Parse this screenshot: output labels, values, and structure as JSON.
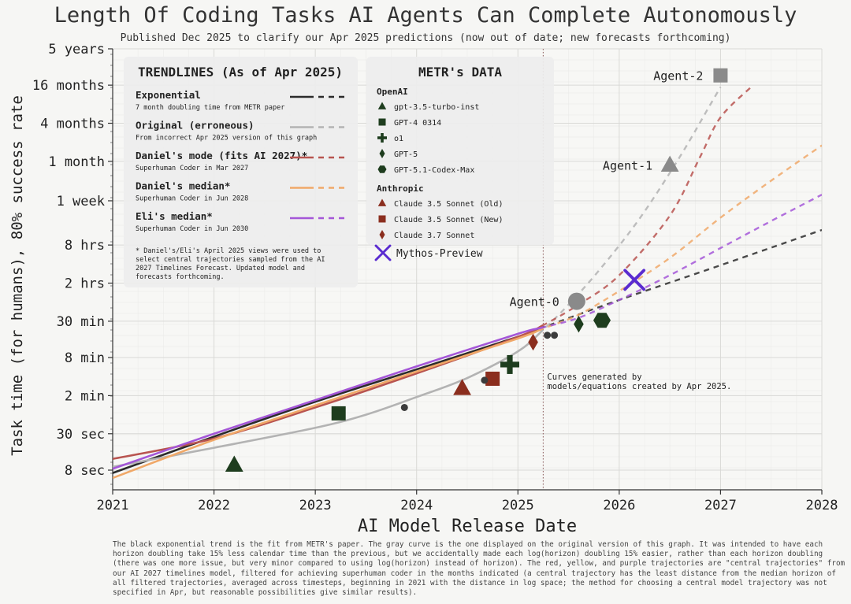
{
  "title": "Length Of Coding Tasks AI Agents Can Complete Autonomously",
  "subtitle": "Published Dec 2025 to clarify our Apr 2025 predictions (now out of date; new forecasts forthcoming)",
  "caption": "The black exponential trend is the fit from METR's paper. The gray curve is the one displayed on the original version of this graph. It was intended to have each horizon doubling take 15% less calendar time than the previous, but we accidentally made each log(horizon) doubling 15% easier, rather than each horizon doubling (there was one more issue, but very minor compared to using log(horizon) instead of horizon). The red, yellow, and purple trajectories are \"central trajectories\" from our AI 2027 timelines model, filtered for achieving superhuman coder in the months indicated (a central trajectory has the least distance from the median horizon of all filtered trajectories, averaged across timesteps, beginning in 2021 with the distance in log space; the method for choosing a central model trajectory was not specified in Apr, but reasonable possibilities give similar results).",
  "chart_data": {
    "type": "scatter",
    "xlabel": "AI Model Release Date",
    "ylabel": "Task time (for humans), 80% success rate",
    "xlim": [
      2021,
      2028
    ],
    "x_ticks": [
      "2021",
      "2022",
      "2023",
      "2024",
      "2025",
      "2026",
      "2027",
      "2028"
    ],
    "y_scale": "log",
    "y_unit": "minutes",
    "ylim_minutes": [
      4,
      2628000
    ],
    "y_ticks": [
      {
        "label": "8 sec",
        "minutes": 0.133
      },
      {
        "label": "30 sec",
        "minutes": 0.5
      },
      {
        "label": "2 min",
        "minutes": 2
      },
      {
        "label": "8 min",
        "minutes": 8
      },
      {
        "label": "30 min",
        "minutes": 30
      },
      {
        "label": "2 hrs",
        "minutes": 120
      },
      {
        "label": "8 hrs",
        "minutes": 480
      },
      {
        "label": "1 week",
        "minutes": 2400
      },
      {
        "label": "1 month",
        "minutes": 10080
      },
      {
        "label": "4 months",
        "minutes": 40320
      },
      {
        "label": "16 months",
        "minutes": 161280
      },
      {
        "label": "5 years",
        "minutes": 604800
      }
    ],
    "cutoff_line": {
      "x": 2025.25,
      "note": "Curves generated by models/equations created by Apr 2025."
    },
    "trend_panel": {
      "heading": "TRENDLINES (As of Apr 2025)",
      "footnote": "* Daniel's/Eli's April 2025 views were used to select central trajectories sampled from the AI 2027 Timelines Forecast. Updated model and forecasts forthcoming."
    },
    "trendlines": [
      {
        "name": "Exponential",
        "desc": "7 month doubling time from METR paper",
        "color": "#2b2b2b",
        "points": [
          [
            2021.0,
            0.12
          ],
          [
            2022.0,
            0.45
          ],
          [
            2023.0,
            1.6
          ],
          [
            2024.0,
            5.2
          ],
          [
            2025.0,
            17
          ],
          [
            2025.25,
            24
          ],
          [
            2026.0,
            65
          ],
          [
            2027.0,
            230
          ],
          [
            2028.0,
            830
          ]
        ]
      },
      {
        "name": "Original (erroneous)",
        "desc": "From incorrect Apr 2025 version of this graph",
        "color": "#b3b3b3",
        "points": [
          [
            2021.0,
            0.15
          ],
          [
            2022.0,
            0.3
          ],
          [
            2023.0,
            0.62
          ],
          [
            2023.5,
            1.0
          ],
          [
            2024.0,
            1.9
          ],
          [
            2024.5,
            3.8
          ],
          [
            2025.0,
            10
          ],
          [
            2025.25,
            22
          ],
          [
            2025.5,
            55
          ],
          [
            2025.8,
            190
          ],
          [
            2026.2,
            1250
          ],
          [
            2026.6,
            12000
          ],
          [
            2026.9,
            80000
          ],
          [
            2027.0,
            150000
          ]
        ]
      },
      {
        "name": "Daniel's mode (fits AI 2027)*",
        "desc": "Superhuman Coder in Mar 2027",
        "color": "#b85450",
        "points": [
          [
            2021.0,
            0.2
          ],
          [
            2022.0,
            0.42
          ],
          [
            2023.0,
            1.3
          ],
          [
            2024.0,
            4.5
          ],
          [
            2025.0,
            17
          ],
          [
            2025.25,
            26
          ],
          [
            2025.6,
            55
          ],
          [
            2026.0,
            160
          ],
          [
            2026.5,
            1400
          ],
          [
            2026.8,
            12000
          ],
          [
            2027.0,
            50000
          ],
          [
            2027.3,
            150000
          ]
        ]
      },
      {
        "name": "Daniel's median*",
        "desc": "Superhuman Coder in Jun 2028",
        "color": "#f0a868",
        "points": [
          [
            2021.0,
            0.1
          ],
          [
            2022.0,
            0.4
          ],
          [
            2023.0,
            1.4
          ],
          [
            2024.0,
            4.8
          ],
          [
            2025.0,
            16
          ],
          [
            2025.25,
            23
          ],
          [
            2025.6,
            38
          ],
          [
            2026.0,
            90
          ],
          [
            2026.5,
            300
          ],
          [
            2027.0,
            1300
          ],
          [
            2027.5,
            5000
          ],
          [
            2028.0,
            18000
          ]
        ]
      },
      {
        "name": "Eli's median*",
        "desc": "Superhuman Coder in Jun 2030",
        "color": "#a457d8",
        "points": [
          [
            2021.0,
            0.14
          ],
          [
            2022.0,
            0.5
          ],
          [
            2023.0,
            1.7
          ],
          [
            2024.0,
            5.8
          ],
          [
            2025.0,
            19
          ],
          [
            2025.25,
            24
          ],
          [
            2025.6,
            34
          ],
          [
            2026.0,
            65
          ],
          [
            2026.5,
            160
          ],
          [
            2027.0,
            430
          ],
          [
            2027.5,
            1150
          ],
          [
            2028.0,
            3000
          ]
        ]
      }
    ],
    "data_panel": {
      "heading": "METR's DATA",
      "groups": [
        "OpenAI",
        "Anthropic"
      ]
    },
    "legend_models": [
      {
        "group": "OpenAI",
        "label": "gpt-3.5-turbo-inst",
        "marker": "triangle",
        "color": "#1e3d1e"
      },
      {
        "group": "OpenAI",
        "label": "GPT-4 0314",
        "marker": "square",
        "color": "#1e3d1e"
      },
      {
        "group": "OpenAI",
        "label": "o1",
        "marker": "plus",
        "color": "#1e3d1e"
      },
      {
        "group": "OpenAI",
        "label": "GPT-5",
        "marker": "diamond",
        "color": "#1e3d1e"
      },
      {
        "group": "OpenAI",
        "label": "GPT-5.1-Codex-Max",
        "marker": "hexagon",
        "color": "#1e3d1e"
      },
      {
        "group": "Anthropic",
        "label": "Claude 3.5 Sonnet (Old)",
        "marker": "triangle",
        "color": "#8b2e1e"
      },
      {
        "group": "Anthropic",
        "label": "Claude 3.5 Sonnet (New)",
        "marker": "square",
        "color": "#8b2e1e"
      },
      {
        "group": "Anthropic",
        "label": "Claude 3.7 Sonnet",
        "marker": "diamond",
        "color": "#8b2e1e"
      },
      {
        "group": "",
        "label": "Mythos-Preview",
        "marker": "x",
        "color": "#5a2bd0"
      }
    ],
    "points": [
      {
        "label": "gpt-3.5-turbo-inst",
        "x": 2022.2,
        "y_minutes": 0.16,
        "marker": "triangle",
        "color": "#1e3d1e"
      },
      {
        "label": "GPT-4 0314",
        "x": 2023.23,
        "y_minutes": 1.05,
        "marker": "square",
        "color": "#1e3d1e"
      },
      {
        "label": "Claude 3.5 Sonnet (Old)",
        "x": 2024.45,
        "y_minutes": 2.6,
        "marker": "triangle",
        "color": "#8b2e1e"
      },
      {
        "label": "Claude 3.5 Sonnet (New)",
        "x": 2024.75,
        "y_minutes": 3.7,
        "marker": "square",
        "color": "#8b2e1e"
      },
      {
        "label": "o1",
        "x": 2024.92,
        "y_minutes": 6.2,
        "marker": "plus",
        "color": "#1e3d1e"
      },
      {
        "label": "Claude 3.7 Sonnet",
        "x": 2025.15,
        "y_minutes": 14,
        "marker": "diamond",
        "color": "#8b2e1e"
      },
      {
        "label": "GPT-5",
        "x": 2025.6,
        "y_minutes": 27,
        "marker": "diamond",
        "color": "#1e3d1e"
      },
      {
        "label": "GPT-5.1-Codex-Max",
        "x": 2025.83,
        "y_minutes": 31,
        "marker": "hexagon",
        "color": "#1e3d1e"
      },
      {
        "label": "",
        "x": 2023.88,
        "y_minutes": 1.3,
        "marker": "dot",
        "color": "#3c3c3c"
      },
      {
        "label": "",
        "x": 2024.67,
        "y_minutes": 3.5,
        "marker": "dot",
        "color": "#3c3c3c"
      },
      {
        "label": "",
        "x": 2025.29,
        "y_minutes": 18,
        "marker": "dot",
        "color": "#3c3c3c"
      },
      {
        "label": "",
        "x": 2025.36,
        "y_minutes": 18,
        "marker": "dot",
        "color": "#3c3c3c"
      },
      {
        "label": "Mythos-Preview",
        "x": 2026.15,
        "y_minutes": 135,
        "marker": "x",
        "color": "#5a2bd0"
      },
      {
        "label": "Agent-0",
        "x": 2025.58,
        "y_minutes": 62,
        "marker": "bigcircle",
        "color": "#8a8a8a"
      },
      {
        "label": "Agent-1",
        "x": 2026.5,
        "y_minutes": 8800,
        "marker": "bigtriangle",
        "color": "#8a8a8a"
      },
      {
        "label": "Agent-2",
        "x": 2027.0,
        "y_minutes": 230000,
        "marker": "bigsquare",
        "color": "#8a8a8a"
      }
    ]
  }
}
